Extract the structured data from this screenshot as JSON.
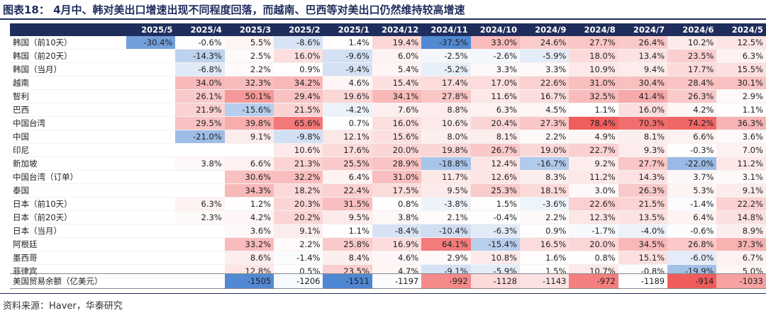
{
  "header": {
    "title": "图表18： 4月中、韩对美出口增速出现不同程度回落，而越南、巴西等对美出口仍然维持较高增速"
  },
  "table": {
    "columns": [
      "2025/5",
      "2025/4",
      "2025/3",
      "2025/2",
      "2025/1",
      "2024/12",
      "2024/11",
      "2024/10",
      "2024/9",
      "2024/8",
      "2024/7",
      "2024/6",
      "2024/5"
    ],
    "rows": [
      [
        "韩国（前10天）",
        "-30.4%",
        "-0.6%",
        "5.5%",
        "-8.6%",
        "1.4%",
        "19.4%",
        "-37.5%",
        "33.0%",
        "24.6%",
        "27.7%",
        "26.4%",
        "10.2%",
        "12.5%"
      ],
      [
        "韩国（前20天）",
        null,
        "-14.3%",
        "2.5%",
        "16.0%",
        "-9.6%",
        "6.0%",
        "-2.5%",
        "-2.6%",
        "-5.9%",
        "18.0%",
        "13.4%",
        "23.5%",
        "6.3%"
      ],
      [
        "韩国（当月）",
        null,
        "-6.8%",
        "2.2%",
        "0.9%",
        "-9.4%",
        "5.4%",
        "-5.2%",
        "3.3%",
        "3.3%",
        "10.9%",
        "9.4%",
        "17.7%",
        "15.5%"
      ],
      [
        "越南",
        null,
        "34.0%",
        "32.3%",
        "34.2%",
        "4.6%",
        "15.4%",
        "17.4%",
        "17.0%",
        "22.6%",
        "31.0%",
        "30.4%",
        "28.4%",
        "30.1%"
      ],
      [
        "智利",
        null,
        "26.1%",
        "50.1%",
        "29.4%",
        "19.6%",
        "34.1%",
        "27.8%",
        "11.6%",
        "16.7%",
        "32.5%",
        "41.4%",
        "26.3%",
        "2.9%"
      ],
      [
        "巴西",
        null,
        "21.9%",
        "-15.6%",
        "21.5%",
        "-4.2%",
        "7.6%",
        "8.8%",
        "6.3%",
        "4.5%",
        "1.1%",
        "16.0%",
        "4.2%",
        "1.1%"
      ],
      [
        "中国台湾",
        null,
        "29.5%",
        "39.8%",
        "65.6%",
        "0.7%",
        "16.0%",
        "10.6%",
        "20.4%",
        "27.3%",
        "78.4%",
        "70.3%",
        "74.2%",
        "36.3%"
      ],
      [
        "中国",
        null,
        "-21.0%",
        "9.1%",
        "-9.8%",
        "12.1%",
        "15.6%",
        "8.0%",
        "8.1%",
        "2.2%",
        "4.9%",
        "8.1%",
        "6.6%",
        "3.6%"
      ],
      [
        "印尼",
        null,
        null,
        null,
        "10.6%",
        "17.6%",
        "20.0%",
        "19.8%",
        "26.7%",
        "19.0%",
        "22.7%",
        "9.3%",
        "-0.3%",
        "7.0%"
      ],
      [
        "新加坡",
        null,
        "3.8%",
        "6.6%",
        "21.3%",
        "25.5%",
        "28.9%",
        "-18.8%",
        "12.4%",
        "-16.7%",
        "9.2%",
        "27.7%",
        "-22.0%",
        "11.2%"
      ],
      [
        "中国台湾（订单）",
        null,
        null,
        "30.6%",
        "32.2%",
        "6.4%",
        "31.0%",
        "11.7%",
        "12.6%",
        "8.3%",
        "11.2%",
        "14.3%",
        "3.7%",
        "3.1%"
      ],
      [
        "泰国",
        null,
        null,
        "34.3%",
        "18.2%",
        "22.4%",
        "17.5%",
        "9.5%",
        "25.3%",
        "18.1%",
        "3.0%",
        "26.3%",
        "5.3%",
        "9.1%"
      ],
      [
        "日本（前10天）",
        null,
        "6.3%",
        "1.2%",
        "20.3%",
        "31.5%",
        "0.8%",
        "-3.8%",
        "1.5%",
        "-3.6%",
        "22.6%",
        "21.5%",
        "-1.4%",
        "22.2%"
      ],
      [
        "日本（前20天）",
        null,
        "2.3%",
        "4.2%",
        "20.2%",
        "9.5%",
        "3.8%",
        "2.1%",
        "-0.4%",
        "2.2%",
        "12.3%",
        "13.5%",
        "6.4%",
        "14.8%"
      ],
      [
        "日本（当月）",
        null,
        null,
        "3.6%",
        "9.1%",
        "1.1%",
        "-8.4%",
        "-10.4%",
        "-6.3%",
        "0.9%",
        "-1.7%",
        "-4.0%",
        "-0.6%",
        "8.9%"
      ],
      [
        "阿根廷",
        null,
        null,
        "33.2%",
        "2.2%",
        "25.8%",
        "16.9%",
        "64.1%",
        "-15.4%",
        "16.5%",
        "20.0%",
        "34.5%",
        "26.8%",
        "37.3%"
      ],
      [
        "墨西哥",
        null,
        null,
        "8.6%",
        "-1.4%",
        "8.4%",
        "4.6%",
        "2.9%",
        "10.8%",
        "1.6%",
        "0.8%",
        "15.1%",
        "-6.0%",
        "6.7%"
      ],
      [
        "菲律宾",
        null,
        null,
        "12.8%",
        "0.5%",
        "23.5%",
        "4.7%",
        "-9.1%",
        "-5.9%",
        "1.5%",
        "10.7%",
        "-0.8%",
        "-19.9%",
        "5.0%"
      ]
    ],
    "balance": [
      "美国贸易余额（亿美元）",
      null,
      null,
      "-1505",
      "-1206",
      "-1511",
      "-1197",
      "-992",
      "-1128",
      "-1143",
      "-972",
      "-1189",
      "-914",
      "-1033"
    ]
  },
  "footer": {
    "source": "资料来源：Haver，华泰研究"
  }
}
